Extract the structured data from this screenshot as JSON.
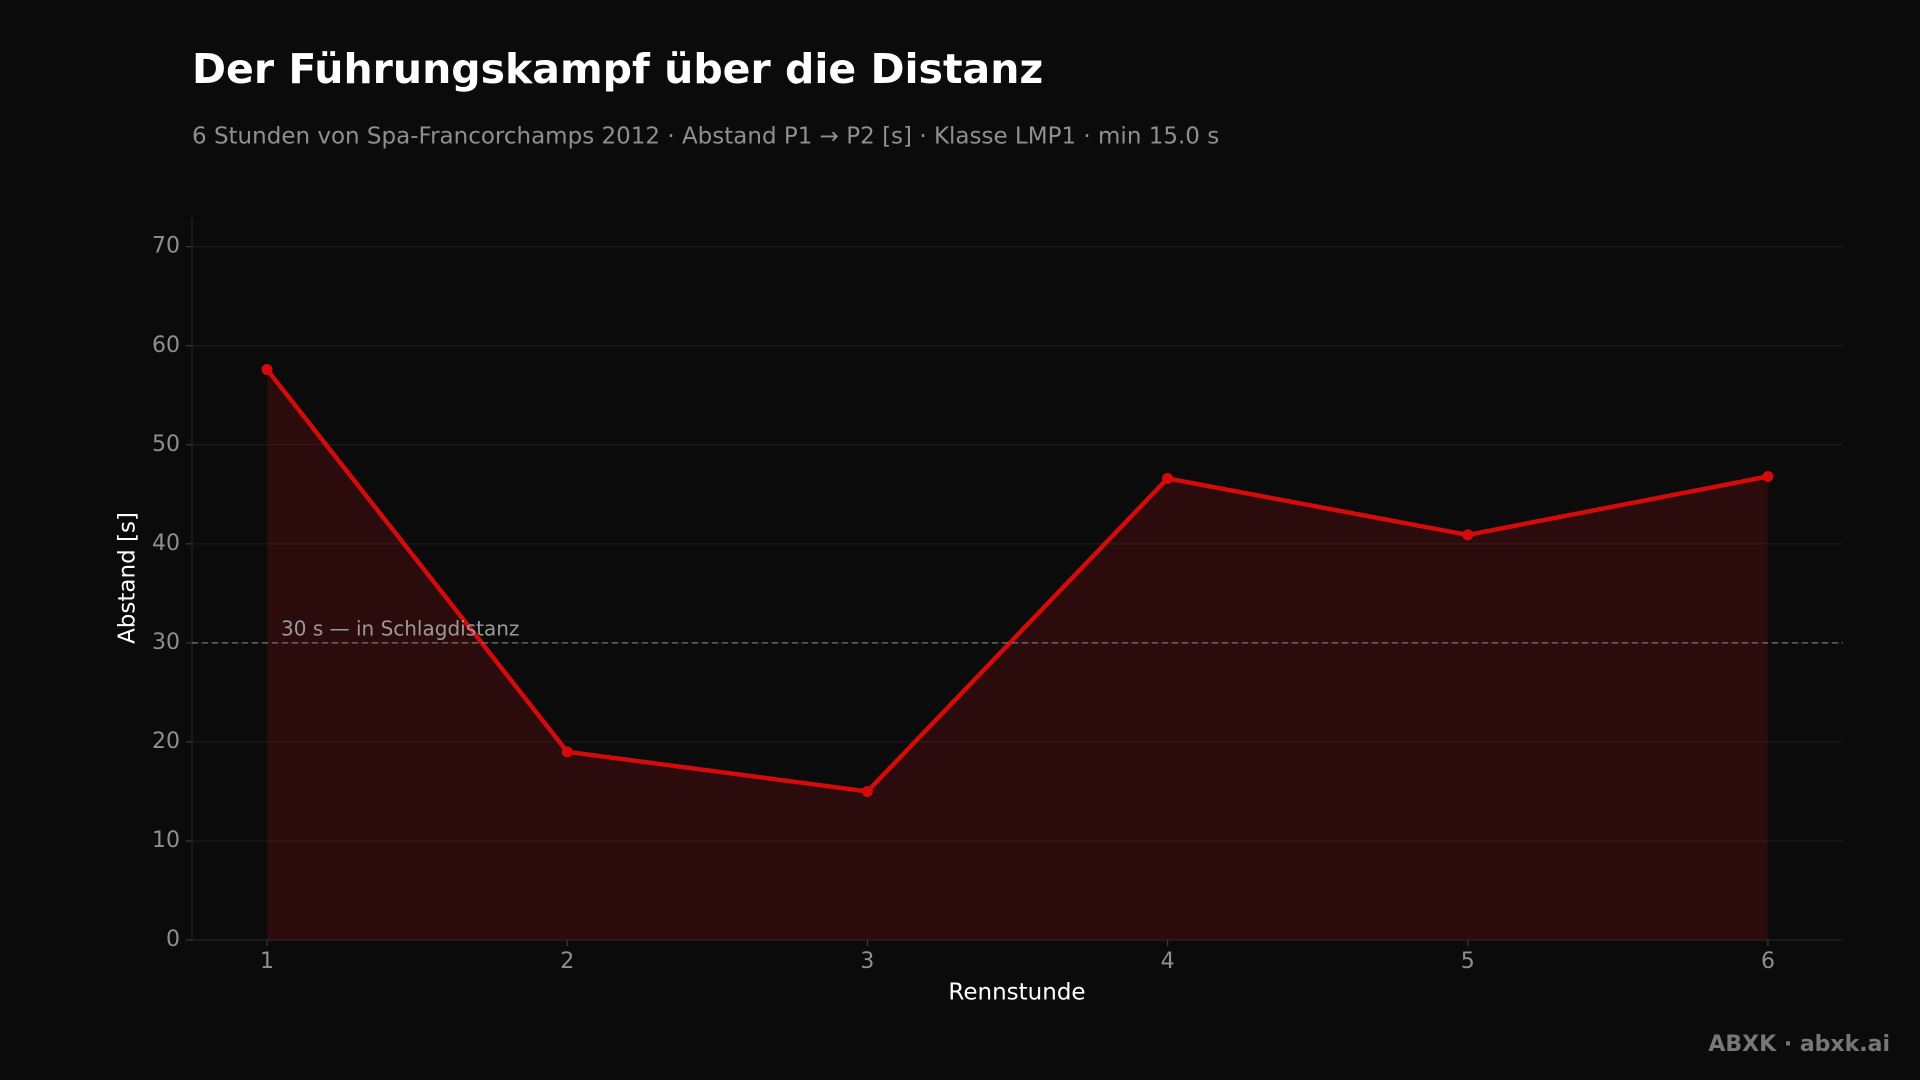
{
  "chart_data": {
    "type": "line",
    "title": "Der Führungskampf über die Distanz",
    "subtitle": "6 Stunden von Spa-Francorchamps 2012 · Abstand P1 → P2 [s] · Klasse LMP1 · min 15.0 s",
    "x_label": "Rennstunde",
    "y_label": "Abstand [s]",
    "x": [
      1,
      2,
      3,
      4,
      5,
      6
    ],
    "series": [
      {
        "name": "Abstand P1 → P2",
        "color": "#d40b0b",
        "values": [
          57.6,
          19.0,
          15.0,
          46.6,
          40.9,
          46.8
        ]
      }
    ],
    "xlim": [
      0.75,
      6.25
    ],
    "xticks": [
      1,
      2,
      3,
      4,
      5,
      6
    ],
    "ylim": [
      0,
      73
    ],
    "yticks": [
      0,
      10,
      20,
      30,
      40,
      50,
      60,
      70
    ],
    "grid": true,
    "area_fill": true,
    "reference_line": {
      "value": 30,
      "label": "30 s — in Schlagdistanz"
    }
  },
  "footer": "ABXK · abxk.ai"
}
